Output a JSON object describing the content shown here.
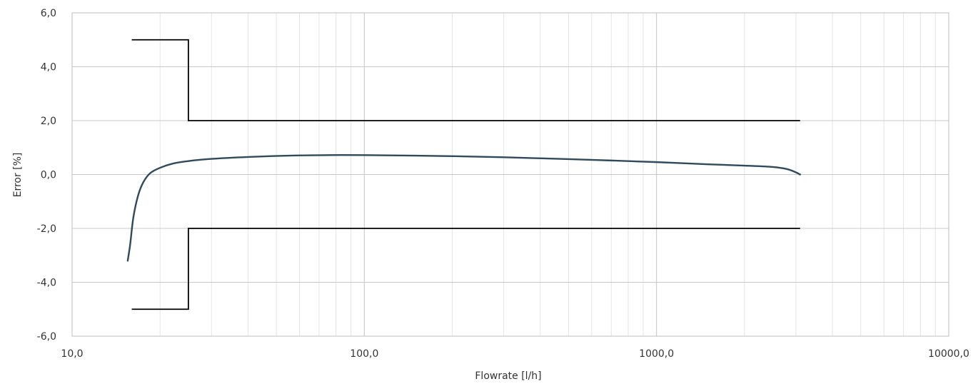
{
  "chart_data": {
    "type": "line",
    "title": "",
    "xlabel": "Flowrate [l/h]",
    "ylabel": "Error [%]",
    "xscale": "log",
    "xlim": [
      10,
      10000
    ],
    "ylim": [
      -6,
      6
    ],
    "grid": true,
    "legend": "none",
    "x_tick_labels": [
      "10,0",
      "100,0",
      "1000,0",
      "10000,0"
    ],
    "y_tick_labels": [
      "6,0",
      "4,0",
      "2,0",
      "0,0",
      "-2,0",
      "-4,0",
      "-6,0"
    ],
    "series": [
      {
        "role": "error-curve",
        "color": "#2f4a5c",
        "x": [
          15.5,
          15.8,
          16.2,
          16.8,
          17.5,
          18.5,
          20,
          22,
          25,
          30,
          40,
          55,
          75,
          100,
          150,
          200,
          300,
          500,
          700,
          1000,
          1500,
          2000,
          2500,
          2800,
          3000,
          3100
        ],
        "y": [
          -3.2,
          -2.6,
          -1.6,
          -0.8,
          -0.3,
          0.05,
          0.25,
          0.4,
          0.5,
          0.58,
          0.65,
          0.7,
          0.72,
          0.72,
          0.7,
          0.68,
          0.64,
          0.57,
          0.52,
          0.46,
          0.38,
          0.33,
          0.28,
          0.2,
          0.08,
          0.0
        ]
      },
      {
        "role": "upper-limit",
        "color": "#000000",
        "x": [
          16,
          25,
          25,
          3100
        ],
        "y": [
          5,
          5,
          2,
          2
        ]
      },
      {
        "role": "lower-limit",
        "color": "#000000",
        "x": [
          16,
          25,
          25,
          3100
        ],
        "y": [
          -5,
          -5,
          -2,
          -2
        ]
      }
    ]
  }
}
